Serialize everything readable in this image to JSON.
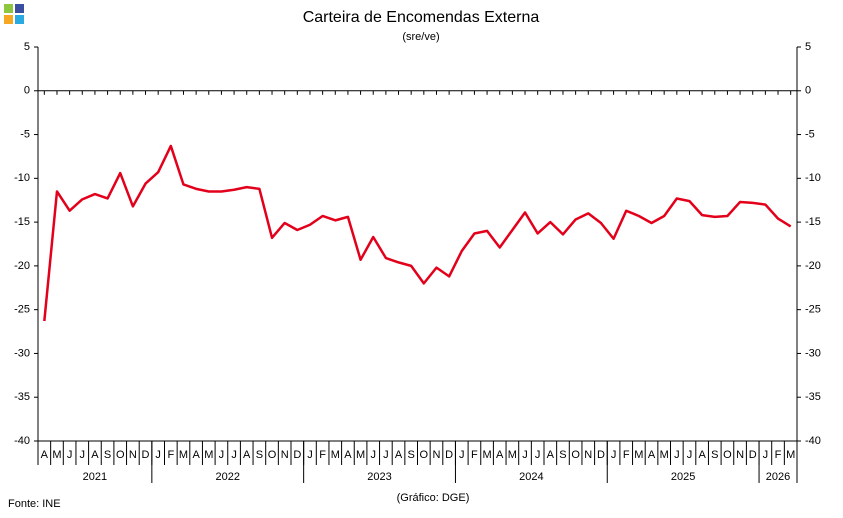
{
  "chart_data": {
    "type": "line",
    "title": "Carteira de Encomendas Externa",
    "subtitle": "(sre/ve)",
    "source": "Fonte: INE",
    "credit": "(Gráfico: DGE)",
    "categories": [
      "A",
      "M",
      "J",
      "J",
      "A",
      "S",
      "O",
      "N",
      "D",
      "J",
      "F",
      "M",
      "A",
      "M",
      "J",
      "J",
      "A",
      "S",
      "O",
      "N",
      "D",
      "J",
      "F",
      "M",
      "A",
      "M",
      "J",
      "J",
      "A",
      "S",
      "O",
      "N",
      "D",
      "J",
      "F",
      "M",
      "A",
      "M",
      "J",
      "J",
      "A",
      "S",
      "O",
      "N",
      "D",
      "J",
      "F",
      "M",
      "A",
      "M",
      "J",
      "J",
      "A",
      "S",
      "O",
      "N",
      "D",
      "J",
      "F",
      "M"
    ],
    "years": [
      "2021",
      "2022",
      "2023",
      "2024",
      "2025",
      "2026"
    ],
    "series": [
      {
        "color": "#e3001b",
        "values": [
          -26.3,
          -11.5,
          -13.7,
          -12.4,
          -11.8,
          -12.3,
          -9.4,
          -13.2,
          -10.6,
          -9.3,
          -6.3,
          -10.7,
          -11.2,
          -11.5,
          -11.5,
          -11.3,
          -11.0,
          -11.2,
          -16.8,
          -15.1,
          -15.9,
          -15.3,
          -14.3,
          -14.8,
          -14.4,
          -19.3,
          -16.7,
          -19.1,
          -19.6,
          -20.0,
          -22.0,
          -20.2,
          -21.2,
          -18.3,
          -16.3,
          -16.0,
          -17.9,
          -15.9,
          -13.9,
          -16.3,
          -15.0,
          -16.4,
          -14.7,
          -14.0,
          -15.1,
          -16.9,
          -13.7,
          -14.3,
          -15.1,
          -14.3,
          -12.3,
          -12.6,
          -14.2,
          -14.4,
          -14.3,
          -12.7,
          -12.8,
          -13.0,
          -14.6,
          -15.5
        ]
      }
    ],
    "ylim": [
      -40,
      5
    ],
    "yticks": [
      -40,
      -35,
      -30,
      -25,
      -20,
      -15,
      -10,
      -5,
      0,
      5
    ],
    "right_axis": true
  }
}
